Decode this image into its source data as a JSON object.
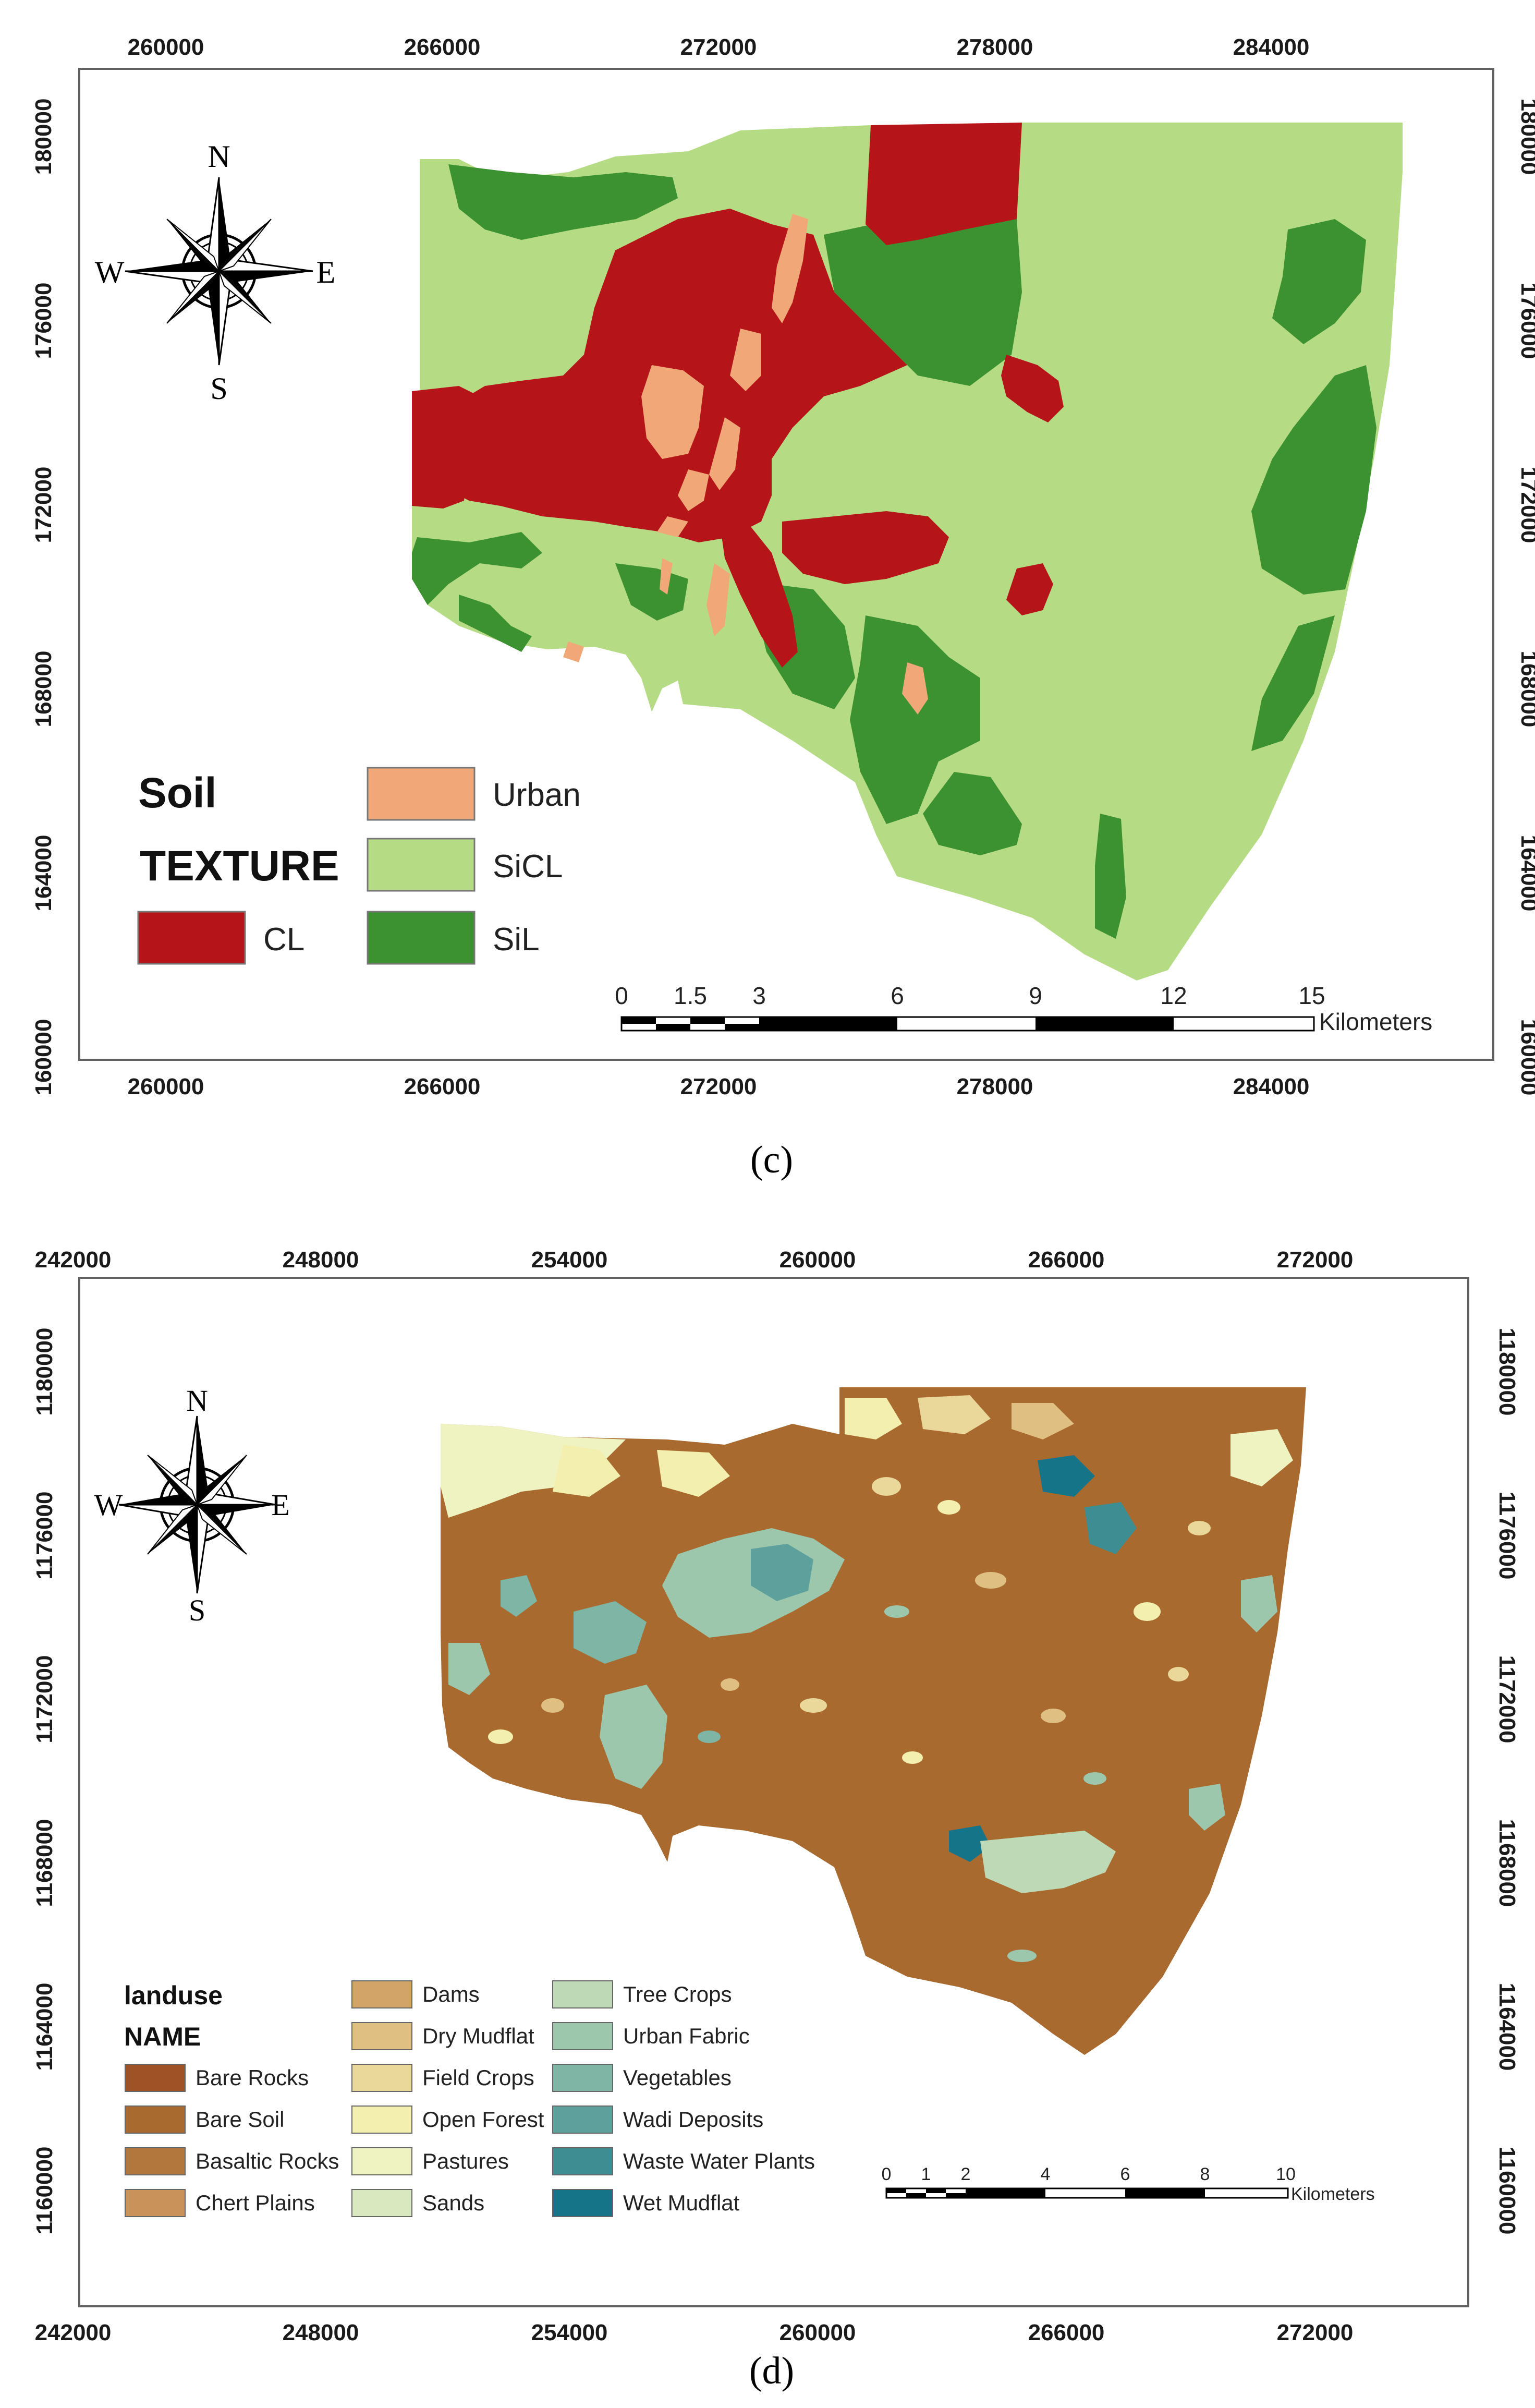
{
  "map_c": {
    "panel_label": "(c)",
    "x_ticks": [
      "260000",
      "266000",
      "272000",
      "278000",
      "284000"
    ],
    "y_ticks": [
      "180000",
      "176000",
      "172000",
      "168000",
      "164000",
      "160000"
    ],
    "compass": {
      "n": "N",
      "s": "S",
      "e": "E",
      "w": "W"
    },
    "legend": {
      "title_line1": "Soil",
      "title_line2": "TEXTURE",
      "items": [
        {
          "label": "Urban",
          "color": "#f0a878"
        },
        {
          "label": "SiCL",
          "color": "#b5dc85"
        },
        {
          "label": "CL",
          "color": "#b51419"
        },
        {
          "label": "SiL",
          "color": "#3c9231"
        }
      ]
    },
    "scale_bar": {
      "ticks": [
        "0",
        "1.5",
        "3",
        "6",
        "9",
        "12",
        "15"
      ],
      "unit": "Kilometers"
    }
  },
  "map_d": {
    "panel_label": "(d)",
    "x_ticks": [
      "242000",
      "248000",
      "254000",
      "260000",
      "266000",
      "272000"
    ],
    "y_ticks": [
      "1180000",
      "1176000",
      "1172000",
      "1168000",
      "1164000",
      "1160000"
    ],
    "compass": {
      "n": "N",
      "s": "S",
      "e": "E",
      "w": "W"
    },
    "legend": {
      "title_line1": "landuse",
      "title_line2": "NAME",
      "items": [
        {
          "label": "Bare Rocks",
          "color": "#9e5225"
        },
        {
          "label": "Bare Soil",
          "color": "#a86a2f"
        },
        {
          "label": "Basaltic Rocks",
          "color": "#b2773c"
        },
        {
          "label": "Chert Plains",
          "color": "#c8925a"
        },
        {
          "label": "Dams",
          "color": "#d2a468"
        },
        {
          "label": "Dry Mudflat",
          "color": "#dfbf82"
        },
        {
          "label": "Field Crops",
          "color": "#ead79a"
        },
        {
          "label": "Open Forest",
          "color": "#f3efae"
        },
        {
          "label": "Pastures",
          "color": "#eff3c2"
        },
        {
          "label": "Sands",
          "color": "#d8e9c0"
        },
        {
          "label": "Tree Crops",
          "color": "#bdd9b6"
        },
        {
          "label": "Urban Fabric",
          "color": "#9cc7ad"
        },
        {
          "label": "Vegetables",
          "color": "#7fb5a5"
        },
        {
          "label": "Wadi Deposits",
          "color": "#5ea09c"
        },
        {
          "label": "Waste Water Plants",
          "color": "#3d8d93"
        },
        {
          "label": "Wet Mudflat",
          "color": "#167489"
        }
      ]
    },
    "scale_bar": {
      "ticks": [
        "0",
        "1",
        "2",
        "4",
        "6",
        "8",
        "10"
      ],
      "unit": "Kilometers"
    }
  }
}
